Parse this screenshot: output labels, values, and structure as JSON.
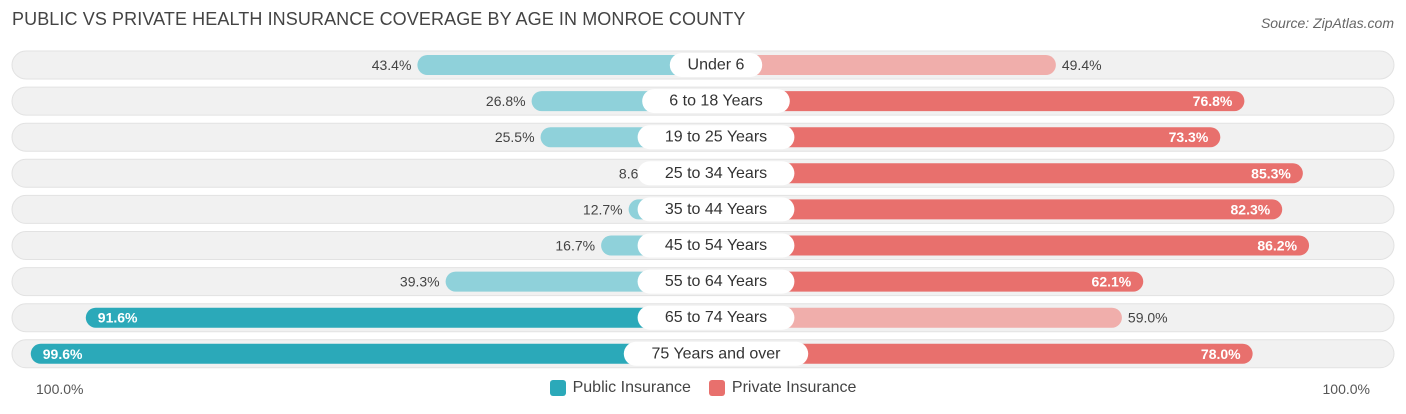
{
  "header": {
    "title": "PUBLIC VS PRIVATE HEALTH INSURANCE COVERAGE BY AGE IN MONROE COUNTY",
    "source": "Source: ZipAtlas.com"
  },
  "colors": {
    "public": "#2ba9b9",
    "public_light": "#8fd1da",
    "private": "#e8706d",
    "private_light": "#f0aeab",
    "row_bg": "#f1f1f1"
  },
  "axis": {
    "left_label": "100.0%",
    "right_label": "100.0%"
  },
  "chart_data": {
    "type": "bar",
    "orientation": "diverging-horizontal",
    "categories": [
      "Under 6",
      "6 to 18 Years",
      "19 to 25 Years",
      "25 to 34 Years",
      "35 to 44 Years",
      "45 to 54 Years",
      "55 to 64 Years",
      "65 to 74 Years",
      "75 Years and over"
    ],
    "series": [
      {
        "name": "Public Insurance",
        "values": [
          43.4,
          26.8,
          25.5,
          8.6,
          12.7,
          16.7,
          39.3,
          91.6,
          99.6
        ],
        "labels": [
          "43.4%",
          "26.8%",
          "25.5%",
          "8.6%",
          "12.7%",
          "16.7%",
          "39.3%",
          "91.6%",
          "99.6%"
        ]
      },
      {
        "name": "Private Insurance",
        "values": [
          49.4,
          76.8,
          73.3,
          85.3,
          82.3,
          86.2,
          62.1,
          59.0,
          78.0
        ],
        "labels": [
          "49.4%",
          "76.8%",
          "73.3%",
          "85.3%",
          "82.3%",
          "86.2%",
          "62.1%",
          "59.0%",
          "78.0%"
        ]
      }
    ],
    "xlim": [
      0,
      100
    ],
    "legend": "bottom-center"
  }
}
